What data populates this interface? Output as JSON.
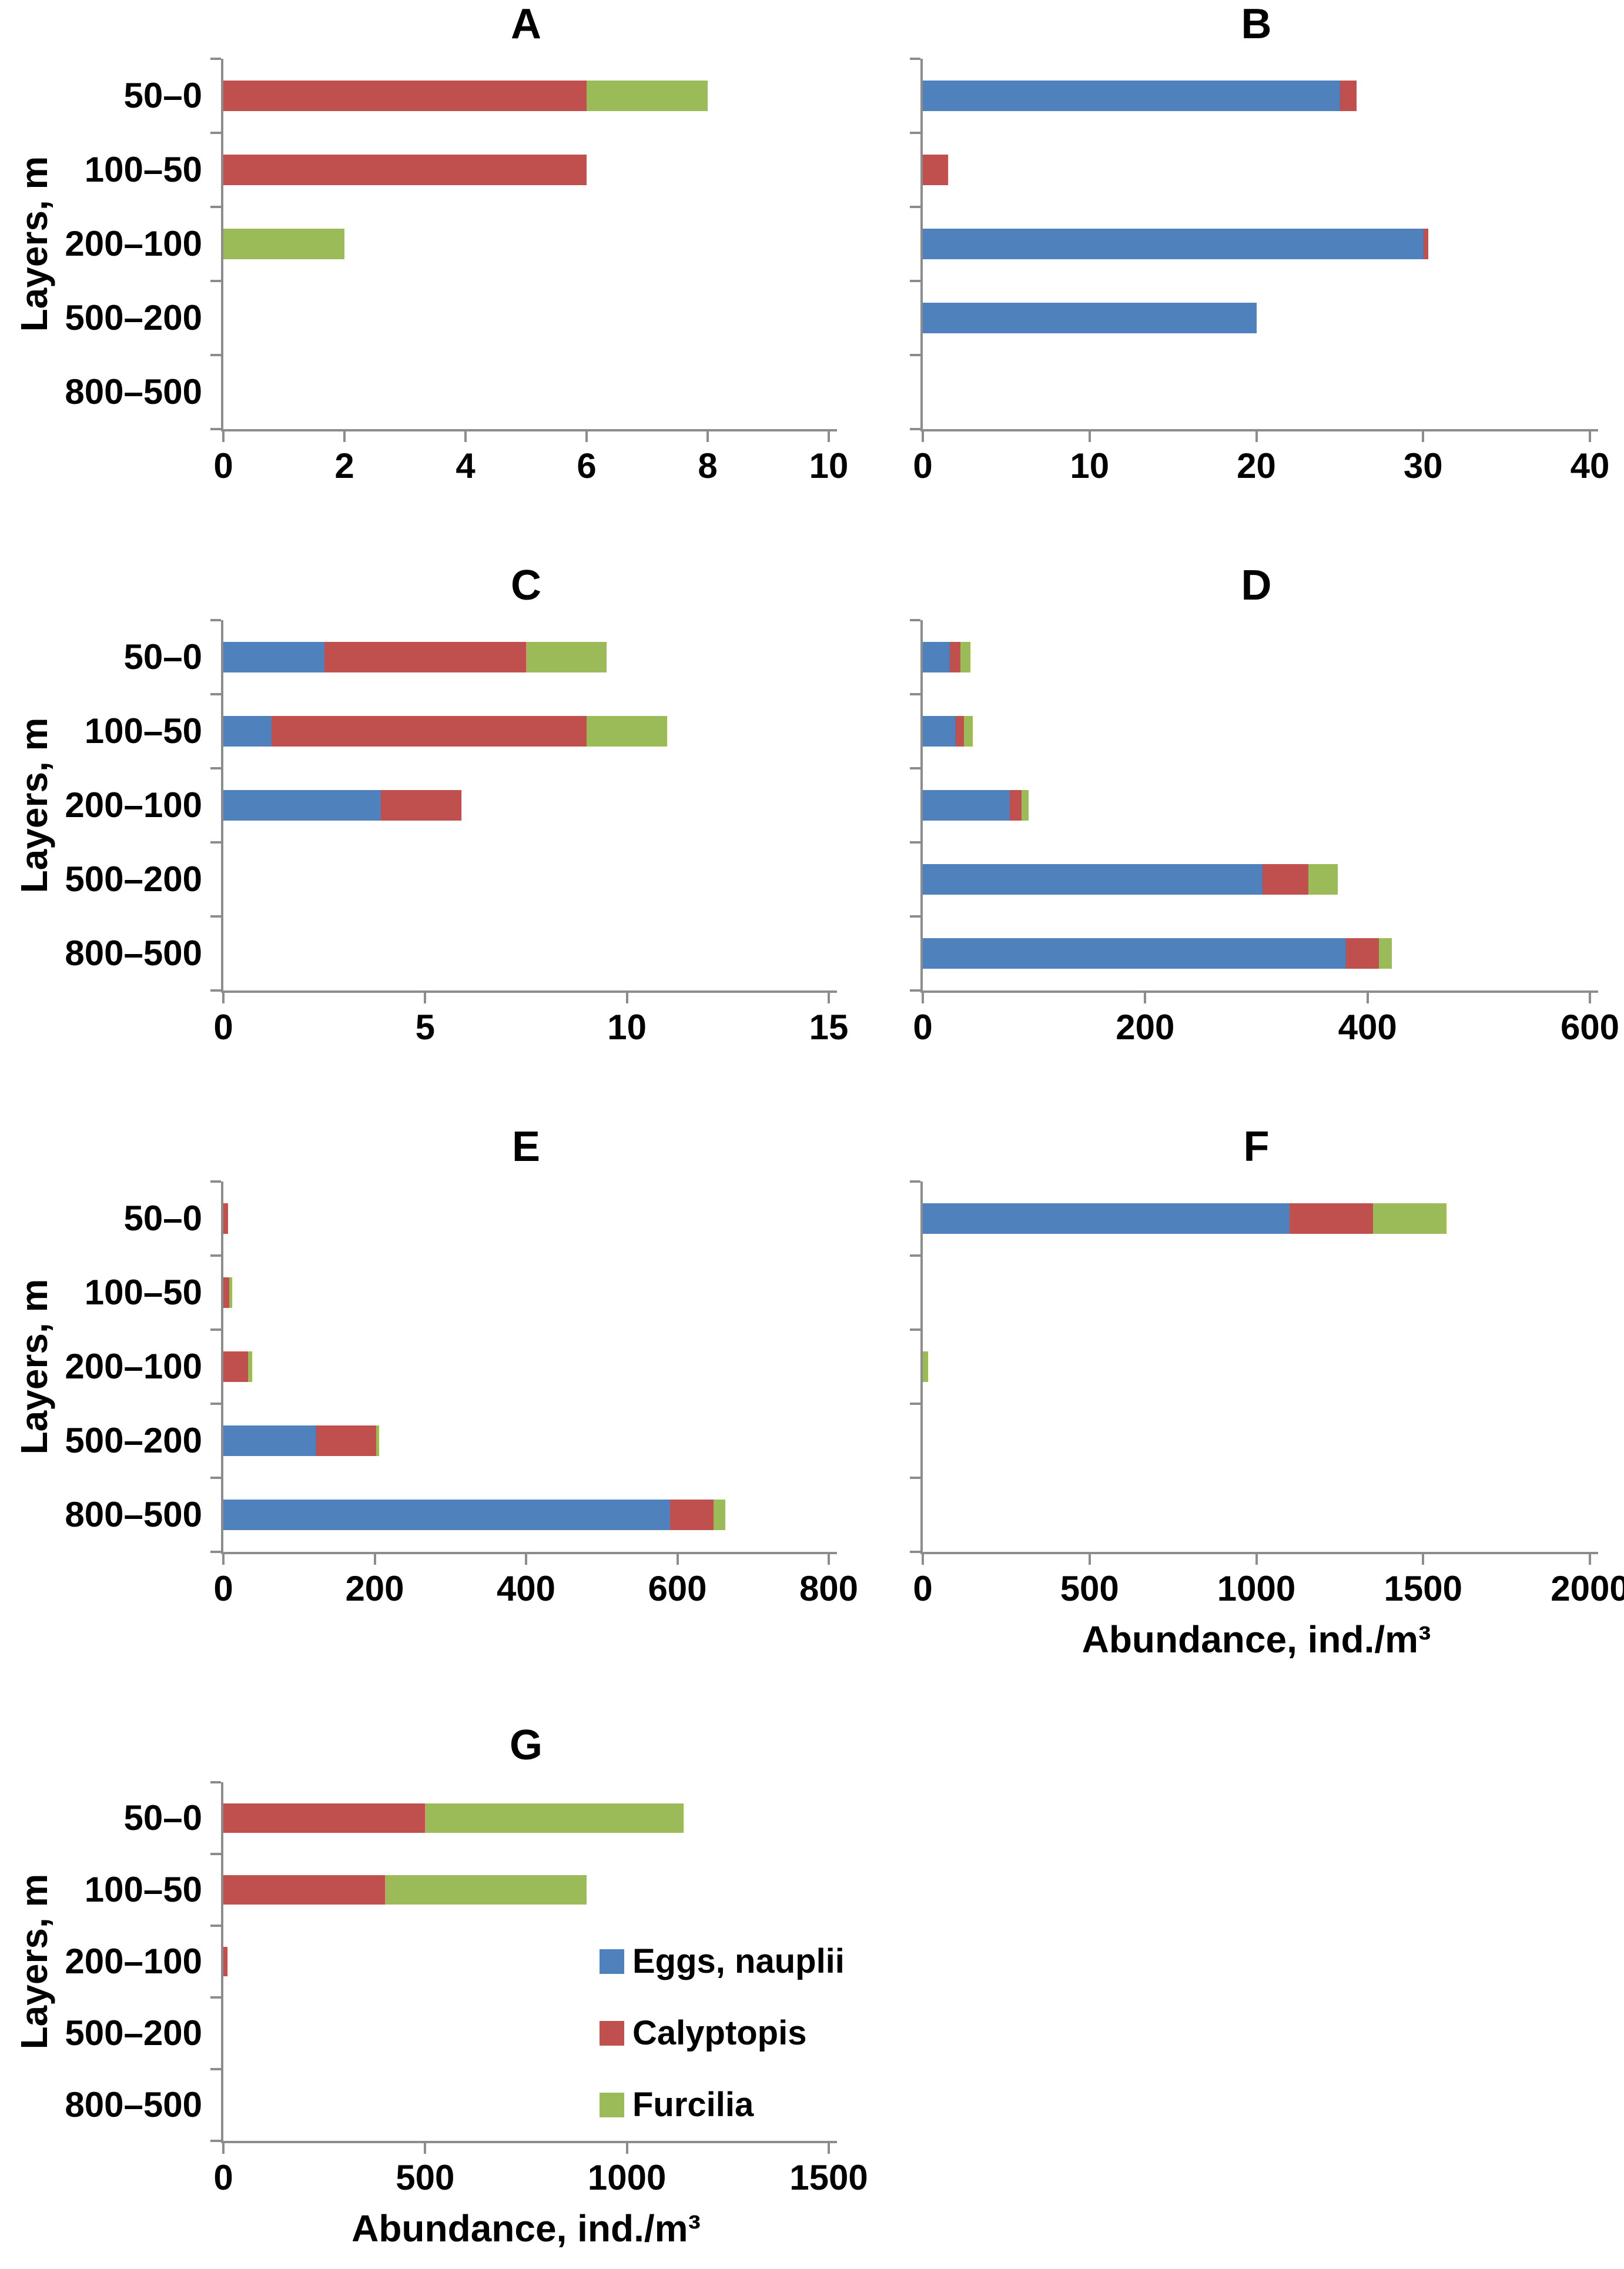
{
  "figure": {
    "background": "#ffffff",
    "axis_color": "#8C8C8C",
    "text_color": "#000000",
    "y_axis_title": "Layers, m",
    "x_axis_title": "Abundance, ind./m³",
    "categories": [
      "50–0",
      "100–50",
      "200–100",
      "500–200",
      "800–500"
    ],
    "legend_items": [
      {
        "label": "Eggs, nauplii",
        "color": "#4F81BD"
      },
      {
        "label": "Calyptopis",
        "color": "#C0504D"
      },
      {
        "label": "Furcilia",
        "color": "#9BBB59"
      }
    ]
  },
  "chart_data": [
    {
      "type": "bar",
      "stacked": true,
      "orientation": "horizontal",
      "title": "A",
      "categories": [
        "50–0",
        "100–50",
        "200–100",
        "500–200",
        "800–500"
      ],
      "ylabel": "Layers, m",
      "xlabel": null,
      "legend": false,
      "xlim": [
        0,
        10
      ],
      "xticks": [
        0,
        2,
        4,
        6,
        8,
        10
      ],
      "series": [
        {
          "name": "Eggs, nauplii",
          "color": "#4F81BD",
          "values": [
            0,
            0,
            0,
            0,
            0
          ]
        },
        {
          "name": "Calyptopis",
          "color": "#C0504D",
          "values": [
            6,
            6,
            0,
            0,
            0
          ]
        },
        {
          "name": "Furcilia",
          "color": "#9BBB59",
          "values": [
            2,
            0,
            2,
            0,
            0
          ]
        }
      ]
    },
    {
      "type": "bar",
      "stacked": true,
      "orientation": "horizontal",
      "title": "B",
      "categories": [
        "50–0",
        "100–50",
        "200–100",
        "500–200",
        "800–500"
      ],
      "ylabel": null,
      "xlabel": null,
      "legend": false,
      "xlim": [
        0,
        40
      ],
      "xticks": [
        0,
        10,
        20,
        30,
        40
      ],
      "series": [
        {
          "name": "Eggs, nauplii",
          "color": "#4F81BD",
          "values": [
            25,
            0,
            30,
            20,
            0
          ]
        },
        {
          "name": "Calyptopis",
          "color": "#C0504D",
          "values": [
            1,
            1.5,
            0.3,
            0,
            0
          ]
        },
        {
          "name": "Furcilia",
          "color": "#9BBB59",
          "values": [
            0,
            0,
            0,
            0,
            0
          ]
        }
      ]
    },
    {
      "type": "bar",
      "stacked": true,
      "orientation": "horizontal",
      "title": "C",
      "categories": [
        "50–0",
        "100–50",
        "200–100",
        "500–200",
        "800–500"
      ],
      "ylabel": "Layers, m",
      "xlabel": null,
      "legend": false,
      "xlim": [
        0,
        15
      ],
      "xticks": [
        0,
        5,
        10,
        15
      ],
      "series": [
        {
          "name": "Eggs, nauplii",
          "color": "#4F81BD",
          "values": [
            2.5,
            1.2,
            3.9,
            0,
            0
          ]
        },
        {
          "name": "Calyptopis",
          "color": "#C0504D",
          "values": [
            5,
            7.8,
            2,
            0,
            0
          ]
        },
        {
          "name": "Furcilia",
          "color": "#9BBB59",
          "values": [
            2,
            2,
            0,
            0,
            0
          ]
        }
      ]
    },
    {
      "type": "bar",
      "stacked": true,
      "orientation": "horizontal",
      "title": "D",
      "categories": [
        "50–0",
        "100–50",
        "200–100",
        "500–200",
        "800–500"
      ],
      "ylabel": null,
      "xlabel": null,
      "legend": false,
      "xlim": [
        0,
        600
      ],
      "xticks": [
        0,
        200,
        400,
        600
      ],
      "series": [
        {
          "name": "Eggs, nauplii",
          "color": "#4F81BD",
          "values": [
            24,
            29,
            78,
            305,
            380
          ]
        },
        {
          "name": "Calyptopis",
          "color": "#C0504D",
          "values": [
            10,
            8,
            11,
            42,
            30
          ]
        },
        {
          "name": "Furcilia",
          "color": "#9BBB59",
          "values": [
            9,
            8,
            6,
            26,
            12
          ]
        }
      ]
    },
    {
      "type": "bar",
      "stacked": true,
      "orientation": "horizontal",
      "title": "E",
      "categories": [
        "50–0",
        "100–50",
        "200–100",
        "500–200",
        "800–500"
      ],
      "ylabel": "Layers, m",
      "xlabel": null,
      "legend": false,
      "xlim": [
        0,
        800
      ],
      "xticks": [
        0,
        200,
        400,
        600,
        800
      ],
      "series": [
        {
          "name": "Eggs, nauplii",
          "color": "#4F81BD",
          "values": [
            0,
            0,
            0,
            122,
            590
          ]
        },
        {
          "name": "Calyptopis",
          "color": "#C0504D",
          "values": [
            6,
            8,
            33,
            80,
            58
          ]
        },
        {
          "name": "Furcilia",
          "color": "#9BBB59",
          "values": [
            0,
            4,
            5,
            4,
            15
          ]
        }
      ]
    },
    {
      "type": "bar",
      "stacked": true,
      "orientation": "horizontal",
      "title": "F",
      "categories": [
        "50–0",
        "100–50",
        "200–100",
        "500–200",
        "800–500"
      ],
      "ylabel": null,
      "xlabel": "Abundance, ind./m³",
      "legend": false,
      "xlim": [
        0,
        2000
      ],
      "xticks": [
        0,
        500,
        1000,
        1500,
        2000
      ],
      "series": [
        {
          "name": "Eggs, nauplii",
          "color": "#4F81BD",
          "values": [
            1100,
            0,
            0,
            0,
            0
          ]
        },
        {
          "name": "Calyptopis",
          "color": "#C0504D",
          "values": [
            250,
            0,
            0,
            0,
            0
          ]
        },
        {
          "name": "Furcilia",
          "color": "#9BBB59",
          "values": [
            220,
            0,
            15,
            0,
            0
          ]
        }
      ]
    },
    {
      "type": "bar",
      "stacked": true,
      "orientation": "horizontal",
      "title": "G",
      "categories": [
        "50–0",
        "100–50",
        "200–100",
        "500–200",
        "800–500"
      ],
      "ylabel": "Layers, m",
      "xlabel": "Abundance, ind./m³",
      "legend": true,
      "xlim": [
        0,
        1500
      ],
      "xticks": [
        0,
        500,
        1000,
        1500
      ],
      "series": [
        {
          "name": "Eggs, nauplii",
          "color": "#4F81BD",
          "values": [
            0,
            0,
            0,
            0,
            0
          ]
        },
        {
          "name": "Calyptopis",
          "color": "#C0504D",
          "values": [
            500,
            400,
            10,
            0,
            0
          ]
        },
        {
          "name": "Furcilia",
          "color": "#9BBB59",
          "values": [
            640,
            500,
            0,
            0,
            0
          ]
        }
      ]
    }
  ]
}
